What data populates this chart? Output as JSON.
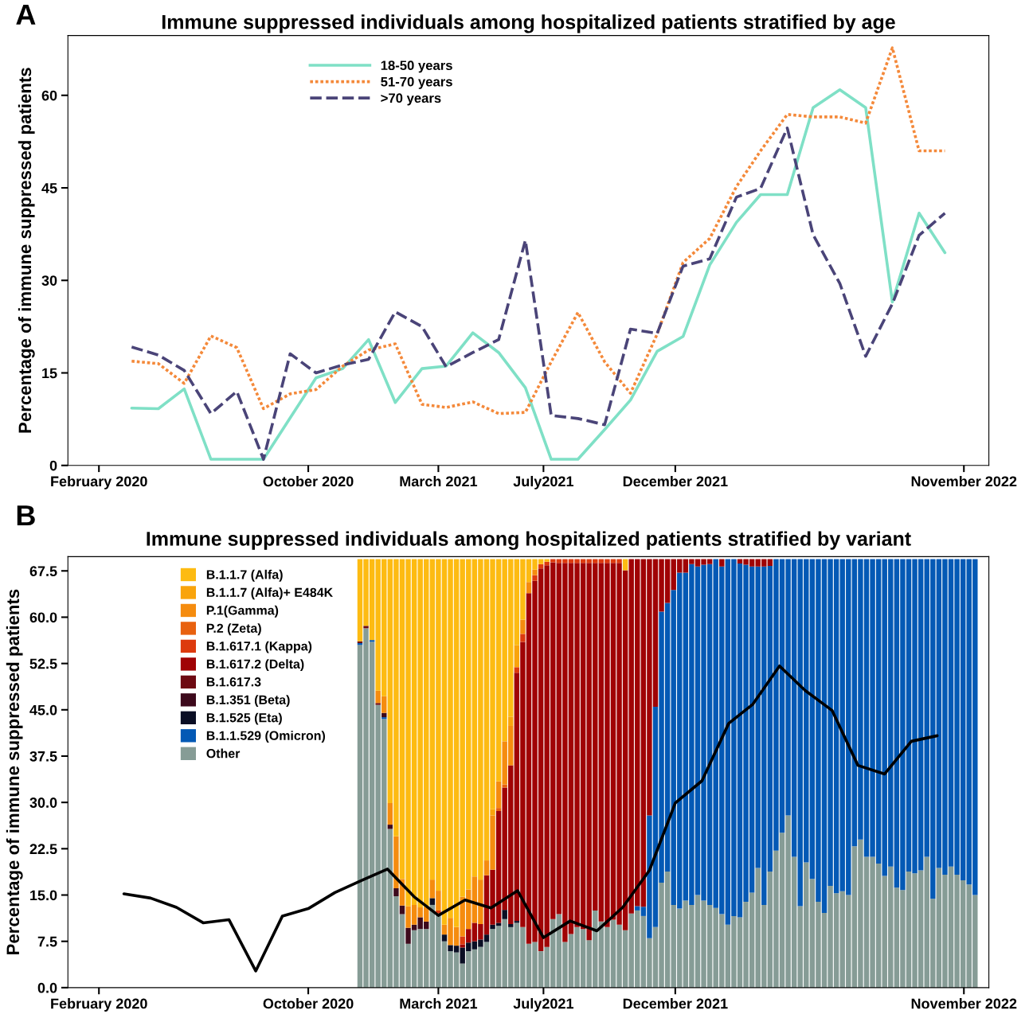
{
  "chart_data": [
    {
      "type": "line",
      "title": "Immune suppressed individuals among hospitalized patients stratified by age",
      "ylabel": "Percentage of immune suppressed patients",
      "annotations": [
        "A"
      ],
      "legend": "top left",
      "xlim": [
        "2019-12-27",
        "2022-11-30"
      ],
      "xticks": [
        {
          "value": "2020-02-01",
          "label": "February 2020"
        },
        {
          "value": "2020-10-01",
          "label": "October 2020"
        },
        {
          "value": "2021-03-01",
          "label": "March 2021"
        },
        {
          "value": "2021-07-01",
          "label": "July2021"
        },
        {
          "value": "2021-12-01",
          "label": "December 2021"
        },
        {
          "value": "2022-11-01",
          "label": "November 2022"
        }
      ],
      "ylim": [
        0,
        69.7
      ],
      "yticks": [
        0,
        15,
        30,
        45,
        60
      ],
      "x": [
        "2020-03-10",
        "2020-04-10",
        "2020-05-10",
        "2020-06-10",
        "2020-07-10",
        "2020-08-10",
        "2020-09-10",
        "2020-10-10",
        "2020-11-10",
        "2020-12-10",
        "2021-01-10",
        "2021-02-10",
        "2021-03-10",
        "2021-04-10",
        "2021-05-10",
        "2021-06-10",
        "2021-07-10",
        "2021-08-10",
        "2021-09-10",
        "2021-10-10",
        "2021-11-10",
        "2021-12-10",
        "2022-01-10",
        "2022-02-10",
        "2022-03-10",
        "2022-04-10",
        "2022-05-10",
        "2022-06-10",
        "2022-07-10",
        "2022-08-10",
        "2022-09-10",
        "2022-10-10"
      ],
      "series": [
        {
          "name": "18-50 years",
          "color": "#7fe0c6",
          "line_style": "solid",
          "values": [
            9.3,
            9.2,
            12.4,
            1,
            1,
            1,
            7.7,
            14.2,
            15.7,
            20.4,
            10.2,
            15.7,
            16.1,
            21.5,
            18.3,
            12.6,
            1,
            1,
            5.8,
            10.6,
            18.5,
            20.9,
            32.5,
            39.4,
            43.9,
            43.9,
            58,
            60.9,
            58,
            26.5,
            40.9,
            34.5
          ]
        },
        {
          "name": "51-70 years",
          "color": "#f4893a",
          "line_style": "dotted",
          "values": [
            16.9,
            16.5,
            13.3,
            21,
            19.1,
            9.2,
            11.6,
            12.3,
            16.1,
            18.7,
            19.7,
            9.9,
            9.4,
            10.3,
            8.4,
            8.6,
            16.8,
            24.8,
            16.8,
            11.7,
            21.3,
            32.9,
            36.8,
            45.2,
            51,
            56.9,
            56.5,
            56.5,
            55.5,
            67.7,
            51,
            51
          ]
        },
        {
          "name": ">70 years",
          "color": "#4a4478",
          "line_style": "dashed",
          "values": [
            19.2,
            17.9,
            15.4,
            8.4,
            12,
            1,
            18.1,
            15,
            16.3,
            17.2,
            24.9,
            22.5,
            16,
            18.3,
            20.4,
            36.5,
            8.1,
            7.6,
            6.6,
            22.1,
            21.4,
            32.3,
            33.5,
            43.5,
            44.9,
            54.7,
            37.4,
            29.5,
            17.7,
            26.2,
            37.3,
            40.9
          ]
        }
      ]
    },
    {
      "type": "bar",
      "stacked": true,
      "title": "Immune suppressed individuals among hospitalized patients stratified by variant",
      "ylabel": "Percentage of immune suppressed patients",
      "annotations": [
        "B"
      ],
      "legend": "top left",
      "xlim": [
        "2019-12-27",
        "2022-11-30"
      ],
      "xticks": [
        {
          "value": "2020-02-01",
          "label": "February 2020"
        },
        {
          "value": "2020-10-01",
          "label": "October 2020"
        },
        {
          "value": "2021-03-01",
          "label": "March 2021"
        },
        {
          "value": "2021-07-01",
          "label": "July2021"
        },
        {
          "value": "2021-12-01",
          "label": "December 2021"
        },
        {
          "value": "2022-11-01",
          "label": "November 2022"
        }
      ],
      "ylim": [
        0,
        69.8
      ],
      "yticks": [
        {
          "value": 0,
          "label": "0.0"
        },
        {
          "value": 7.5,
          "label": "7.5"
        },
        {
          "value": 15,
          "label": "15.0"
        },
        {
          "value": 22.5,
          "label": "22.5"
        },
        {
          "value": 30,
          "label": "30.0"
        },
        {
          "value": 37.5,
          "label": "37.5"
        },
        {
          "value": 45,
          "label": "45.0"
        },
        {
          "value": 52.5,
          "label": "52.5"
        },
        {
          "value": 60,
          "label": "60.0"
        },
        {
          "value": 67.5,
          "label": "67.5"
        }
      ],
      "x": [
        "2020-11-30",
        "2020-12-07",
        "2020-12-14",
        "2020-12-21",
        "2020-12-28",
        "2021-01-04",
        "2021-01-11",
        "2021-01-18",
        "2021-01-25",
        "2021-02-01",
        "2021-02-08",
        "2021-02-15",
        "2021-02-22",
        "2021-03-01",
        "2021-03-08",
        "2021-03-15",
        "2021-03-22",
        "2021-03-29",
        "2021-04-05",
        "2021-04-12",
        "2021-04-19",
        "2021-04-26",
        "2021-05-03",
        "2021-05-10",
        "2021-05-17",
        "2021-05-24",
        "2021-05-31",
        "2021-06-07",
        "2021-06-14",
        "2021-06-21",
        "2021-06-28",
        "2021-07-05",
        "2021-07-12",
        "2021-07-19",
        "2021-07-26",
        "2021-08-02",
        "2021-08-09",
        "2021-08-16",
        "2021-08-23",
        "2021-08-30",
        "2021-09-06",
        "2021-09-13",
        "2021-09-20",
        "2021-09-27",
        "2021-10-04",
        "2021-10-11",
        "2021-10-18",
        "2021-10-25",
        "2021-11-01",
        "2021-11-08",
        "2021-11-15",
        "2021-11-22",
        "2021-11-29",
        "2021-12-06",
        "2021-12-13",
        "2021-12-20",
        "2021-12-27",
        "2022-01-03",
        "2022-01-10",
        "2022-01-17",
        "2022-01-24",
        "2022-01-31",
        "2022-02-07",
        "2022-02-14",
        "2022-02-21",
        "2022-02-28",
        "2022-03-07",
        "2022-03-14",
        "2022-03-21",
        "2022-03-28",
        "2022-04-04",
        "2022-04-11",
        "2022-04-18",
        "2022-04-25",
        "2022-05-02",
        "2022-05-09",
        "2022-05-16",
        "2022-05-23",
        "2022-05-30",
        "2022-06-06",
        "2022-06-13",
        "2022-06-20",
        "2022-06-27",
        "2022-07-04",
        "2022-07-11",
        "2022-07-18",
        "2022-07-25",
        "2022-08-01",
        "2022-08-08",
        "2022-08-15",
        "2022-08-22",
        "2022-08-29",
        "2022-09-05",
        "2022-09-12",
        "2022-09-19",
        "2022-09-26",
        "2022-10-03",
        "2022-10-10",
        "2022-10-17",
        "2022-10-24",
        "2022-10-31",
        "2022-11-07",
        "2022-11-14"
      ],
      "series": [
        {
          "name": "Other",
          "color": "#869c96",
          "values": [
            55.5,
            58.2,
            56.0,
            45.8,
            43.5,
            25.7,
            14.8,
            11.9,
            7.1,
            9.3,
            9.5,
            9.5,
            13.4,
            12.0,
            7.5,
            5.9,
            5.7,
            3.9,
            5.9,
            6.2,
            6.6,
            7.4,
            9.5,
            10.0,
            11.1,
            9.8,
            10.5,
            9.8,
            7.1,
            7.4,
            5.9,
            6.6,
            11.1,
            11.9,
            7.4,
            8.7,
            9.8,
            9.5,
            7.7,
            12.5,
            10.7,
            9.8,
            11.0,
            10.2,
            9.3,
            12.0,
            12.5,
            11.6,
            8.0,
            9.8,
            17.0,
            18.8,
            13.4,
            12.8,
            14.1,
            13.4,
            15.0,
            14.1,
            13.4,
            12.9,
            11.9,
            10.2,
            11.6,
            11.4,
            13.9,
            15.4,
            19.4,
            13.4,
            18.8,
            22.2,
            25.1,
            27.9,
            21.2,
            13.2,
            20.3,
            17.6,
            13.9,
            12.1,
            16.5,
            15.3,
            15.6,
            15.0,
            22.9,
            24.0,
            21.2,
            21.2,
            20.1,
            18.1,
            19.6,
            16.2,
            15.8,
            18.8,
            18.5,
            19.0,
            21.2,
            14.4,
            19.4,
            18.3,
            19.6,
            18.3,
            17.4,
            16.7,
            15.0
          ]
        },
        {
          "name": "B.1.1.529 (Omicron)",
          "color": "#0459b5",
          "values": [
            0.3,
            0,
            0.3,
            0,
            0.3,
            0,
            0,
            0,
            0,
            0,
            0,
            0,
            0,
            0,
            0,
            0,
            0,
            0,
            0,
            0,
            0,
            0,
            0,
            0,
            0,
            0,
            0,
            0,
            0,
            0,
            0,
            0,
            0,
            0,
            0,
            0,
            0,
            0,
            0,
            0,
            0,
            0,
            0,
            0,
            0,
            0,
            0.7,
            1.5,
            19.9,
            35.7,
            43.9,
            43.5,
            51.0,
            54.4,
            53.1,
            55.2,
            53.2,
            54.4,
            55.2,
            56.5,
            56.3,
            59.2,
            57.8,
            57.3,
            54.6,
            52.8,
            48.8,
            54.8,
            49.5,
            47.2,
            44.3,
            41.5,
            48.2,
            56.2,
            49.1,
            51.8,
            55.5,
            57.3,
            52.9,
            54.1,
            53.8,
            54.4,
            46.5,
            45.4,
            48.2,
            48.2,
            49.3,
            51.3,
            49.8,
            53.2,
            53.6,
            50.6,
            50.9,
            50.4,
            48.2,
            55.0,
            50.0,
            51.1,
            49.8,
            51.1,
            52.0,
            52.7,
            54.4
          ]
        },
        {
          "name": "B.1.525 (Eta)",
          "color": "#0a0e24",
          "values": [
            0,
            0,
            0,
            0,
            0,
            0,
            0,
            0,
            0,
            0,
            0,
            0,
            1.1,
            0,
            1.1,
            1.0,
            1.1,
            2.6,
            1.4,
            1.3,
            1.2,
            1.2,
            0.7,
            0.5,
            1.5,
            0.5,
            0.3,
            0,
            0,
            0,
            0,
            0,
            0,
            0,
            0,
            0,
            0,
            0,
            0,
            0,
            0,
            0,
            0,
            0,
            0,
            0,
            0,
            0,
            0,
            0,
            0,
            0,
            0,
            0,
            0,
            0,
            0,
            0,
            0,
            0,
            0,
            0,
            0,
            0,
            0,
            0,
            0,
            0,
            0,
            0,
            0,
            0,
            0,
            0,
            0,
            0,
            0,
            0,
            0,
            0,
            0,
            0,
            0,
            0,
            0,
            0,
            0,
            0,
            0,
            0,
            0,
            0,
            0,
            0,
            0,
            0,
            0,
            0,
            0,
            0,
            0,
            0,
            0
          ]
        },
        {
          "name": "B.1.351 (Beta)",
          "color": "#3d0a1c",
          "values": [
            0,
            0,
            0,
            0,
            0.7,
            0.7,
            1.3,
            1.4,
            2.6,
            0.9,
            1.9,
            1.2,
            0,
            0,
            0,
            0,
            0,
            0,
            0,
            0,
            0,
            0,
            0,
            0,
            0,
            0,
            0,
            0,
            0,
            0,
            0,
            0,
            0,
            0,
            0,
            0,
            0,
            0,
            0,
            0,
            0,
            0,
            0,
            0,
            0,
            0,
            0,
            0,
            0,
            0,
            0,
            0,
            0,
            0,
            0,
            0,
            0,
            0,
            0,
            0,
            0,
            0,
            0,
            0,
            0,
            0,
            0,
            0,
            0,
            0,
            0,
            0,
            0,
            0,
            0,
            0,
            0,
            0,
            0,
            0,
            0,
            0,
            0,
            0,
            0,
            0,
            0,
            0,
            0,
            0,
            0,
            0,
            0,
            0,
            0,
            0,
            0,
            0,
            0,
            0,
            0,
            0,
            0
          ]
        },
        {
          "name": "B.1.617.3",
          "color": "#6e0a12",
          "values": [
            0.3,
            0.4,
            0,
            0.3,
            0,
            0,
            0,
            0,
            0,
            0,
            0,
            0,
            0,
            0,
            0,
            0,
            0,
            0,
            0,
            0,
            0,
            0,
            0,
            0,
            0,
            0,
            0,
            0,
            0,
            0,
            0,
            0,
            0,
            0,
            0,
            0,
            0,
            0,
            0,
            0,
            0,
            0,
            0,
            0,
            0,
            0,
            0,
            0,
            0,
            0,
            0,
            0,
            0,
            0,
            0,
            0,
            0,
            0,
            0,
            0,
            0,
            0,
            0,
            0,
            0,
            0,
            0,
            0,
            0,
            0,
            0,
            0,
            0,
            0,
            0,
            0,
            0,
            0,
            0,
            0,
            0,
            0,
            0,
            0,
            0,
            0,
            0,
            0,
            0,
            0,
            0,
            0,
            0,
            0,
            0,
            0,
            0,
            0,
            0,
            0,
            0,
            0,
            0
          ]
        },
        {
          "name": "B.1.617.2 (Delta)",
          "color": "#a00305",
          "values": [
            0,
            0,
            0,
            0,
            0,
            0,
            0,
            0,
            0,
            0,
            0,
            0,
            0,
            0,
            0,
            0,
            0,
            0.5,
            2.2,
            3.0,
            2.5,
            9.6,
            8.9,
            18.1,
            19.8,
            25.7,
            40.2,
            46.2,
            56.8,
            58.5,
            62.0,
            61.8,
            57.8,
            56.9,
            61.4,
            60.1,
            59.0,
            59.3,
            61.1,
            56.3,
            58.1,
            59.0,
            57.8,
            58.6,
            58.3,
            57.4,
            56.2,
            56.3,
            41.5,
            23.9,
            8.5,
            7.1,
            5.0,
            2.2,
            2.2,
            0.8,
            1.2,
            0.9,
            0.8,
            0,
            1.2,
            0,
            0,
            0.7,
            0.9,
            1.2,
            1.2,
            1.2,
            1.1,
            0,
            0,
            0,
            0,
            0,
            0,
            0,
            0,
            0,
            0,
            0,
            0,
            0,
            0,
            0,
            0,
            0,
            0,
            0,
            0,
            0,
            0,
            0,
            0,
            0,
            0,
            0,
            0,
            0,
            0,
            0,
            0,
            0,
            0
          ]
        },
        {
          "name": "B.1.617.1 (Kappa)",
          "color": "#dd3a0e",
          "values": [
            0,
            0,
            0,
            0,
            0,
            0,
            0,
            0,
            0,
            0,
            0,
            0,
            0,
            0.5,
            0,
            0,
            0,
            1.3,
            0,
            0,
            0,
            0,
            0,
            0,
            0,
            0,
            0.9,
            1.3,
            0,
            0.9,
            0.7,
            0.6,
            0.5,
            0.6,
            0.6,
            0.6,
            0.6,
            0.6,
            0.6,
            0.6,
            0.6,
            0.6,
            0.6,
            0.6,
            0,
            0,
            0,
            0,
            0,
            0,
            0,
            0,
            0,
            0,
            0,
            0,
            0,
            0,
            0,
            0,
            0,
            0,
            0,
            0,
            0,
            0,
            0,
            0,
            0,
            0,
            0,
            0,
            0,
            0,
            0,
            0,
            0,
            0,
            0,
            0,
            0,
            0,
            0,
            0,
            0,
            0,
            0,
            0,
            0,
            0,
            0,
            0,
            0,
            0,
            0,
            0,
            0,
            0,
            0,
            0,
            0,
            0,
            0
          ]
        },
        {
          "name": "P.2 (Zeta)",
          "color": "#e8610f",
          "values": [
            0,
            0,
            0,
            0,
            0,
            0,
            0,
            0,
            0,
            0,
            0,
            0,
            0,
            0,
            0,
            0,
            0,
            0,
            0,
            0,
            0,
            0,
            0,
            0.5,
            0.5,
            0,
            0,
            0,
            0,
            0,
            0,
            0,
            0,
            0,
            0,
            0,
            0,
            0,
            0,
            0,
            0,
            0,
            0,
            0,
            0,
            0,
            0,
            0,
            0,
            0,
            0,
            0,
            0,
            0,
            0,
            0,
            0,
            0,
            0,
            0,
            0,
            0,
            0,
            0,
            0,
            0,
            0,
            0,
            0,
            0,
            0,
            0,
            0,
            0,
            0,
            0,
            0,
            0,
            0,
            0,
            0,
            0,
            0,
            0,
            0,
            0,
            0,
            0,
            0,
            0,
            0,
            0,
            0,
            0,
            0,
            0,
            0,
            0,
            0,
            0,
            0,
            0,
            0
          ]
        },
        {
          "name": "P.1(Gamma)",
          "color": "#f58c0f",
          "values": [
            0,
            0,
            0,
            2.0,
            2.7,
            3.5,
            8.4,
            4.3,
            3.5,
            3.2,
            1.6,
            2.3,
            3.0,
            3.2,
            1.6,
            4.4,
            3.0,
            6.4,
            6.4,
            7.5,
            7.2,
            2.4,
            8.8,
            4.3,
            7.0,
            6.4,
            0,
            2.3,
            1.8,
            0.9,
            0,
            0,
            0,
            0,
            0,
            0,
            0,
            0,
            0,
            0,
            0,
            0,
            0,
            0,
            0,
            0,
            0,
            0,
            0,
            0,
            0,
            0,
            0,
            0,
            0,
            0,
            0,
            0,
            0,
            0,
            0,
            0,
            0,
            0,
            0,
            0,
            0,
            0,
            0,
            0,
            0,
            0,
            0,
            0,
            0,
            0,
            0,
            0,
            0,
            0,
            0,
            0,
            0,
            0,
            0,
            0,
            0,
            0,
            0,
            0,
            0,
            0,
            0,
            0,
            0,
            0,
            0,
            0,
            0,
            0,
            0,
            0,
            0
          ]
        },
        {
          "name": "B.1.1.7 (Alfa)+ E484K",
          "color": "#f9a40c",
          "values": [
            0,
            0,
            0,
            0,
            0,
            0,
            0,
            0,
            0,
            0,
            0,
            0,
            0,
            0,
            0,
            0,
            0,
            0,
            0,
            0,
            0,
            0,
            1.0,
            0,
            0,
            1.5,
            3.6,
            0,
            0,
            0,
            0,
            0,
            0,
            0,
            0,
            0,
            0,
            0,
            0,
            0,
            0,
            0,
            0,
            0,
            0,
            0,
            0,
            0,
            0,
            0,
            0,
            0,
            0,
            0,
            0,
            0,
            0,
            0,
            0,
            0,
            0,
            0,
            0,
            0,
            0,
            0,
            0,
            0,
            0,
            0,
            0,
            0,
            0,
            0,
            0,
            0,
            0,
            0,
            0,
            0,
            0,
            0,
            0,
            0,
            0,
            0,
            0,
            0,
            0,
            0,
            0,
            0,
            0,
            0,
            0,
            0,
            0,
            0,
            0,
            0,
            0,
            0,
            0
          ]
        },
        {
          "name": "B.1.1.7 (Alfa)",
          "color": "#fdbb12",
          "values": [
            13.3,
            10.8,
            13.1,
            21.3,
            22.2,
            39.5,
            44.9,
            51.8,
            56.2,
            56.0,
            56.4,
            56.4,
            51.9,
            53.7,
            59.2,
            58.1,
            59.6,
            54.7,
            53.5,
            51.4,
            51.9,
            48.8,
            40.5,
            36.0,
            29.5,
            25.5,
            13.9,
            9.8,
            3.7,
            1.7,
            0.8,
            0.4,
            0,
            0,
            0,
            0,
            0,
            0,
            0,
            0,
            0,
            0,
            0,
            0,
            1.8,
            0,
            0,
            0,
            0,
            0,
            0,
            0,
            0,
            0,
            0,
            0,
            0,
            0,
            0,
            0,
            0,
            0,
            0,
            0,
            0,
            0,
            0,
            0,
            0,
            0,
            0,
            0,
            0,
            0,
            0,
            0,
            0,
            0,
            0,
            0,
            0,
            0,
            0,
            0,
            0,
            0,
            0,
            0,
            0,
            0,
            0,
            0,
            0,
            0,
            0,
            0,
            0,
            0,
            0,
            0,
            0,
            0,
            0
          ]
        },
        {
          "type": "line",
          "color": "#000000",
          "line_style": "solid",
          "x": [
            "2020-03",
            "2020-04",
            "2020-05",
            "2020-06",
            "2020-07",
            "2020-08",
            "2020-09",
            "2020-10",
            "2020-11",
            "2020-12",
            "2021-01",
            "2021-02",
            "2021-03",
            "2021-04",
            "2021-05",
            "2021-06",
            "2021-07",
            "2021-08",
            "2021-09",
            "2021-10",
            "2021-11",
            "2021-12",
            "2022-01",
            "2022-02",
            "2022-03",
            "2022-04",
            "2022-05",
            "2022-06",
            "2022-07",
            "2022-08",
            "2022-09",
            "2022-10"
          ],
          "values": [
            15.2,
            14.5,
            13.0,
            10.5,
            11.0,
            2.7,
            11.6,
            12.8,
            15.4,
            17.3,
            19.2,
            14.7,
            11.7,
            14.2,
            12.9,
            15.7,
            8.1,
            10.8,
            9.2,
            13.0,
            19.0,
            29.9,
            33.5,
            42.8,
            45.9,
            52.1,
            48.1,
            44.9,
            36.0,
            34.6,
            39.9,
            40.8
          ]
        }
      ]
    }
  ]
}
